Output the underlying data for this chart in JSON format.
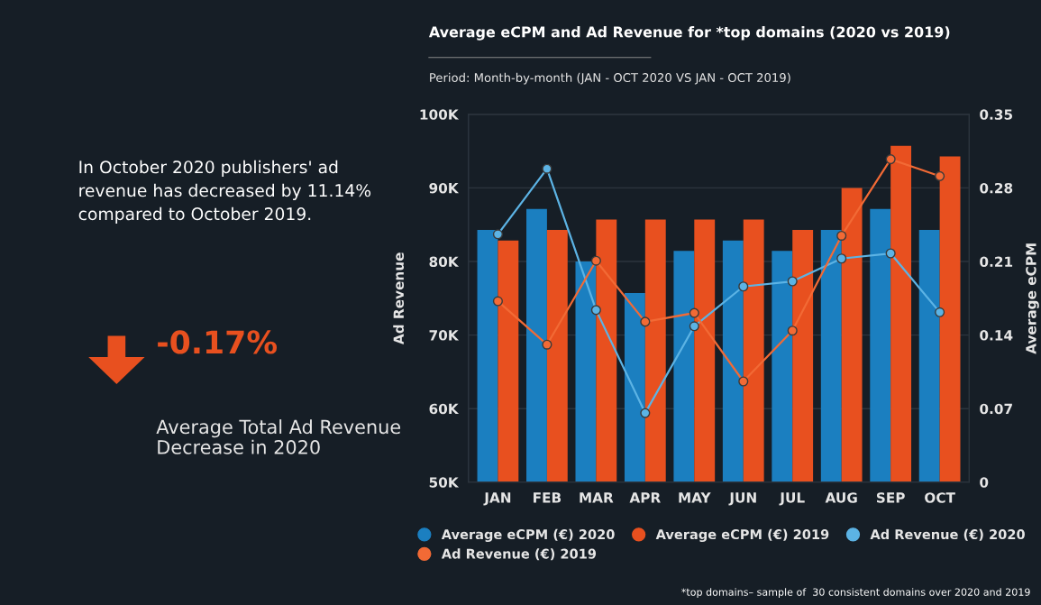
{
  "chart_data": {
    "type": "bar",
    "title": "Average eCPM and Ad Revenue for *top domains (2020 vs 2019)",
    "subtitle": "Period: Month-by-month (JAN - OCT 2020 VS JAN - OCT 2019)",
    "xlabel": null,
    "ylabel": "Ad Revenue",
    "y2label": "Average eCPM",
    "categories": [
      "JAN",
      "FEB",
      "MAR",
      "APR",
      "MAY",
      "JUN",
      "JUL",
      "AUG",
      "SEP",
      "OCT"
    ],
    "series": [
      {
        "name": "Average eCPM (€) 2020",
        "axis": "y2",
        "color": "#1b7fc0",
        "values": [
          0.24,
          0.26,
          0.21,
          0.18,
          0.22,
          0.23,
          0.22,
          0.24,
          0.26,
          0.24
        ]
      },
      {
        "name": "Average eCPM (€) 2019",
        "axis": "y2",
        "color": "#e8501f",
        "values": [
          0.23,
          0.24,
          0.25,
          0.25,
          0.25,
          0.25,
          0.24,
          0.28,
          0.32,
          0.31
        ]
      },
      {
        "name": "Ad Revenue (€) 2020",
        "type": "line",
        "axis": "y",
        "color": "#5cb3e4",
        "marker": "circle",
        "values": [
          83700,
          92600,
          73400,
          59400,
          71200,
          76600,
          77300,
          80400,
          81100,
          73100
        ]
      },
      {
        "name": "Ad Revenue (€) 2019",
        "type": "line",
        "axis": "y",
        "color": "#f26a35",
        "marker": "circle",
        "values": [
          74600,
          68700,
          80100,
          71800,
          73000,
          63700,
          70600,
          83500,
          93900,
          91600
        ]
      }
    ],
    "ylim": [
      50000,
      100000
    ],
    "yticks": [
      {
        "value": 50000,
        "label": "50K"
      },
      {
        "value": 60000,
        "label": "60K"
      },
      {
        "value": 70000,
        "label": "70K"
      },
      {
        "value": 80000,
        "label": "80K"
      },
      {
        "value": 90000,
        "label": "90K"
      },
      {
        "value": 100000,
        "label": "100K"
      }
    ],
    "y2lim": [
      0,
      0.35
    ],
    "y2ticks": [
      0,
      0.07,
      0.14,
      0.21,
      0.28,
      0.35
    ],
    "grid": "y",
    "legend": "bottom",
    "annotations": [
      "In October 2020 publishers' ad revenue has decreased by 11.14% compared to October 2019.",
      "-0.17%",
      "Average Total Ad Revenue Decrease in 2020",
      "*top domains– sample of  30 consistent domains over 2020 and 2019"
    ]
  }
}
